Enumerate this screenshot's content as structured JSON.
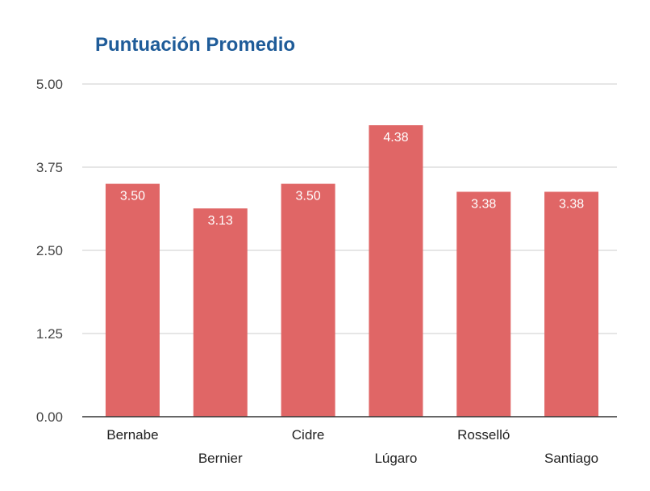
{
  "chart_data": {
    "type": "bar",
    "title": "Puntuación Promedio",
    "categories": [
      "Bernabe",
      "Bernier",
      "Cidre",
      "Lúgaro",
      "Rosselló",
      "Santiago"
    ],
    "values": [
      3.5,
      3.13,
      3.5,
      4.38,
      3.38,
      3.38
    ],
    "data_labels": [
      "3.50",
      "3.13",
      "3.50",
      "4.38",
      "3.38",
      "3.38"
    ],
    "yticks": [
      "0.00",
      "1.25",
      "2.50",
      "3.75",
      "5.00"
    ],
    "ylim": [
      0,
      5
    ],
    "xlabel": "",
    "ylabel": "",
    "grid": true,
    "legend": "none",
    "bar_color": "#e06666",
    "title_color": "#1f5c99"
  }
}
